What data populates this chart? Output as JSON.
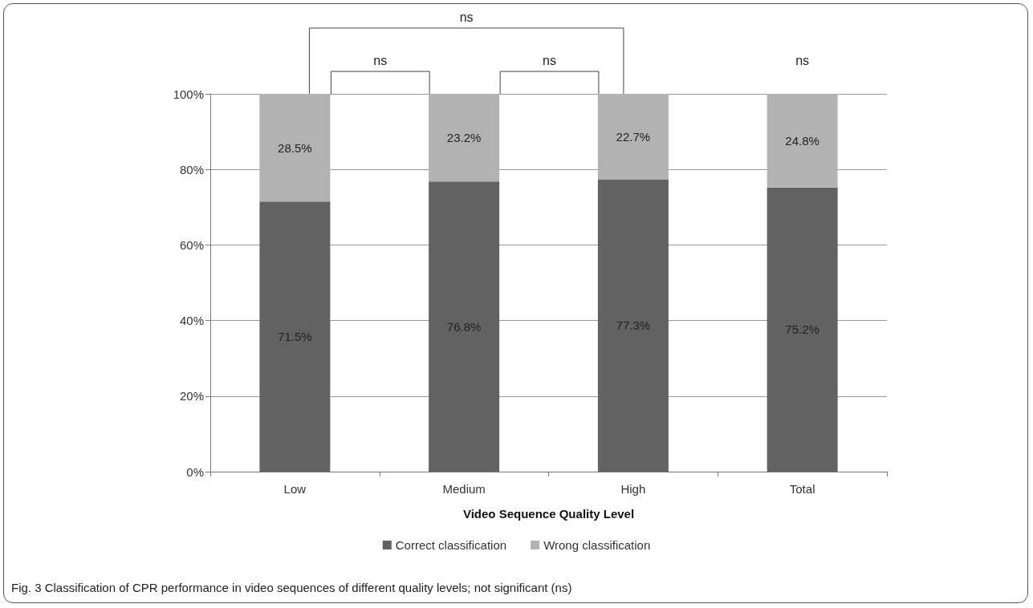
{
  "chart_data": {
    "type": "bar",
    "stacked": true,
    "xlabel": "Video Sequence Quality Level",
    "categories": [
      "Low",
      "Medium",
      "High",
      "Total"
    ],
    "series": [
      {
        "name": "Correct classification",
        "color": "#626262",
        "values": [
          71.5,
          76.8,
          77.3,
          75.2
        ],
        "value_labels": [
          "71.5%",
          "76.8%",
          "77.3%",
          "75.2%"
        ]
      },
      {
        "name": "Wrong classification",
        "color": "#b2b2b2",
        "values": [
          28.5,
          23.2,
          22.7,
          24.8
        ],
        "value_labels": [
          "28.5%",
          "23.2%",
          "22.7%",
          "24.8%"
        ]
      }
    ],
    "ylim": [
      0,
      100
    ],
    "yticks": [
      {
        "value": 0,
        "label": "0%"
      },
      {
        "value": 20,
        "label": "20%"
      },
      {
        "value": 40,
        "label": "40%"
      },
      {
        "value": 60,
        "label": "60%"
      },
      {
        "value": 80,
        "label": "80%"
      },
      {
        "value": 100,
        "label": "100%"
      }
    ],
    "grid": "y",
    "legend": "bottom",
    "annotations": [
      "ns",
      "ns",
      "ns",
      "ns",
      "Fig. 3 Classification of CPR performance in video sequences of different quality levels; not significant (ns)"
    ]
  }
}
